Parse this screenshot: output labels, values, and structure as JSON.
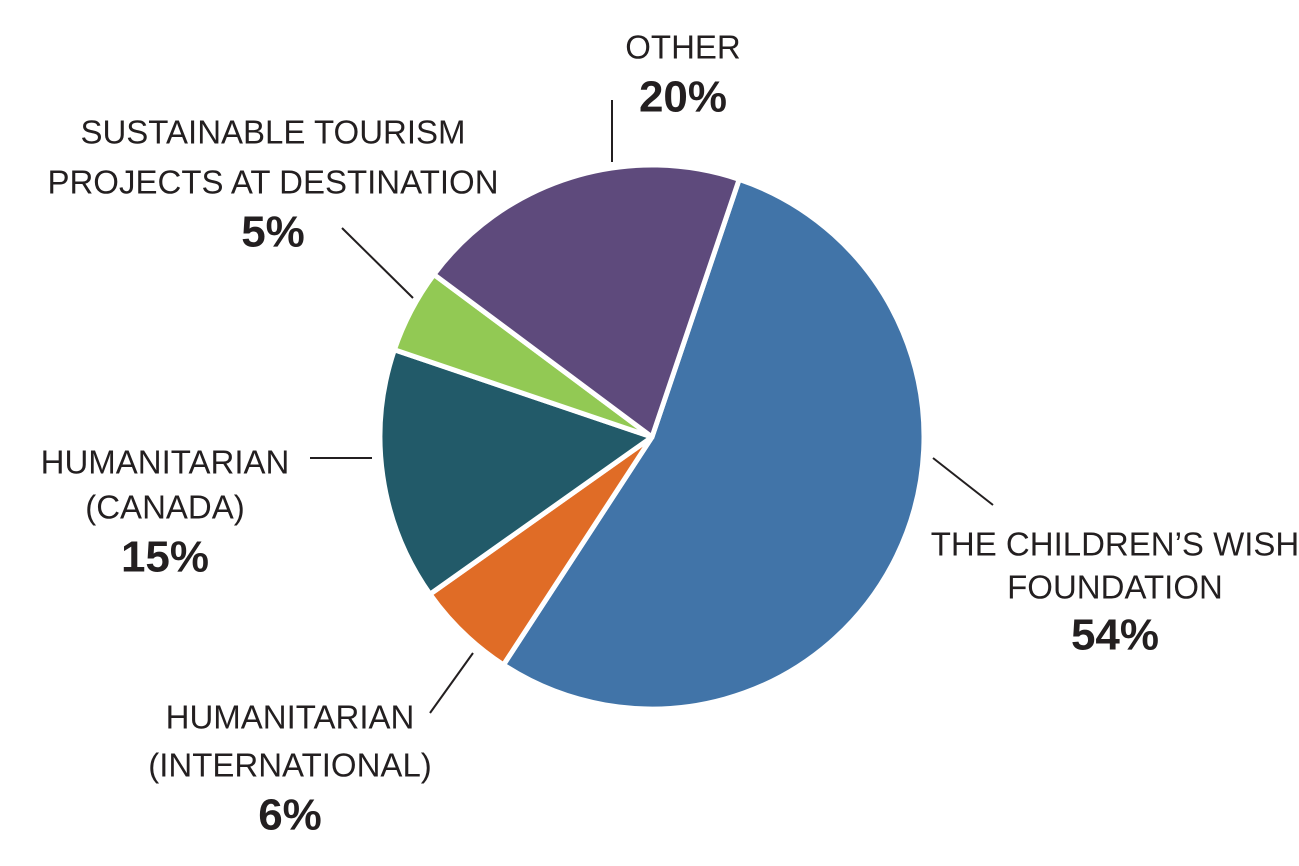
{
  "chart_data": {
    "type": "pie",
    "categories": [
      [
        "THE CHILDREN’S WISH",
        "FOUNDATION"
      ],
      [
        "HUMANITARIAN",
        "(INTERNATIONAL)"
      ],
      [
        "HUMANITARIAN",
        "(CANADA)"
      ],
      [
        "SUSTAINABLE TOURISM",
        "PROJECTS AT DESTINATION"
      ],
      [
        "OTHER"
      ]
    ],
    "values": [
      54,
      6,
      15,
      5,
      20
    ],
    "value_labels": [
      "54%",
      "6%",
      "15%",
      "5%",
      "20%"
    ],
    "colors": [
      "#4174a8",
      "#e06c26",
      "#225a69",
      "#92c954",
      "#5e4a7c"
    ]
  }
}
